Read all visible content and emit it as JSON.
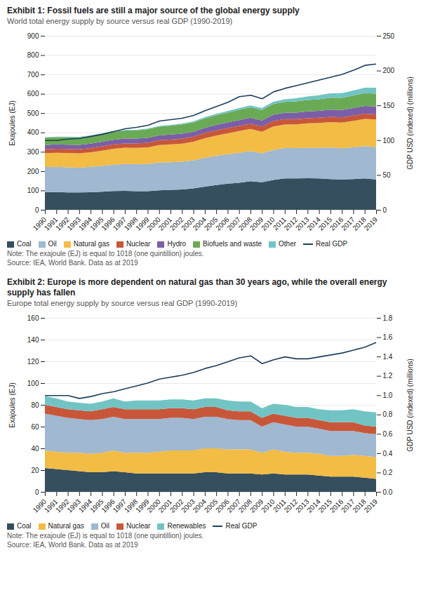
{
  "chart_data": [
    {
      "type": "area",
      "stacked": true,
      "title": "Exhibit 1: Fossil fuels are still a major source of the global energy supply",
      "subtitle": "World total energy supply by source versus real GDP (1990-2019)",
      "x": [
        1990,
        1991,
        1992,
        1993,
        1994,
        1995,
        1996,
        1997,
        1998,
        1999,
        2000,
        2001,
        2002,
        2003,
        2004,
        2005,
        2006,
        2007,
        2008,
        2009,
        2010,
        2011,
        2012,
        2013,
        2014,
        2015,
        2016,
        2017,
        2018,
        2019
      ],
      "xlim": [
        1990,
        2019
      ],
      "xticks": [
        1990,
        1991,
        1992,
        1993,
        1994,
        1995,
        1996,
        1997,
        1998,
        1999,
        2000,
        2001,
        2002,
        2003,
        2004,
        2005,
        2006,
        2007,
        2008,
        2009,
        2010,
        2011,
        2012,
        2013,
        2014,
        2015,
        2016,
        2017,
        2018,
        2019
      ],
      "ylabel": "Exajoules (EJ)",
      "y2label": "GDP USD (indexed) (millions)",
      "ylim": [
        0,
        900
      ],
      "yticks": [
        0,
        100,
        200,
        300,
        400,
        500,
        600,
        700,
        800,
        900
      ],
      "y2lim": [
        0,
        250
      ],
      "y2ticks": [
        0,
        50,
        100,
        150,
        200,
        250
      ],
      "grid": true,
      "legend": "bottom",
      "series": [
        {
          "name": "Coal",
          "color": "#354f5e",
          "values": [
            91,
            92,
            90,
            90,
            91,
            93,
            97,
            98,
            96,
            96,
            101,
            103,
            105,
            111,
            120,
            128,
            135,
            140,
            148,
            142,
            154,
            162,
            162,
            163,
            162,
            159,
            157,
            159,
            162,
            157
          ]
        },
        {
          "name": "Oil",
          "color": "#a0b8d0",
          "values": [
            130,
            130,
            130,
            128,
            131,
            134,
            136,
            139,
            140,
            141,
            144,
            143,
            144,
            145,
            149,
            152,
            153,
            155,
            156,
            150,
            155,
            157,
            157,
            157,
            158,
            163,
            161,
            164,
            167,
            168
          ]
        },
        {
          "name": "Natural gas",
          "color": "#f2bc45",
          "values": [
            72,
            73,
            74,
            74,
            76,
            79,
            83,
            84,
            84,
            86,
            90,
            92,
            93,
            96,
            101,
            104,
            108,
            112,
            114,
            112,
            122,
            122,
            123,
            127,
            129,
            132,
            133,
            137,
            141,
            142
          ]
        },
        {
          "name": "Nuclear",
          "color": "#c8573a",
          "values": [
            20,
            21,
            21,
            21,
            21,
            22,
            22,
            22,
            23,
            24,
            25,
            25,
            26,
            26,
            27,
            27,
            27,
            27,
            27,
            27,
            28,
            28,
            27,
            27,
            27,
            27,
            27,
            27,
            27,
            27
          ]
        },
        {
          "name": "Hydro",
          "color": "#7b5ea7",
          "values": [
            22,
            22,
            22,
            23,
            23,
            24,
            24,
            25,
            25,
            25,
            25,
            26,
            26,
            26,
            27,
            28,
            29,
            30,
            31,
            31,
            33,
            33,
            34,
            35,
            36,
            37,
            38,
            39,
            40,
            40
          ]
        },
        {
          "name": "Biofuels and waste",
          "color": "#6aaa55",
          "values": [
            38,
            38,
            39,
            39,
            40,
            41,
            42,
            42,
            43,
            44,
            45,
            46,
            47,
            48,
            49,
            50,
            51,
            53,
            54,
            54,
            55,
            56,
            58,
            59,
            60,
            62,
            63,
            65,
            66,
            67
          ]
        },
        {
          "name": "Other",
          "color": "#72c4c4",
          "values": [
            2,
            2,
            2,
            2,
            3,
            3,
            3,
            3,
            3,
            4,
            4,
            4,
            5,
            5,
            6,
            7,
            8,
            9,
            10,
            10,
            12,
            14,
            16,
            18,
            20,
            22,
            24,
            26,
            28,
            30
          ]
        },
        {
          "name": "Real GDP",
          "color": "#1c3f5e",
          "type": "line",
          "axis": "y2",
          "values": [
            100,
            100,
            102,
            103,
            106,
            109,
            113,
            117,
            119,
            122,
            128,
            130,
            132,
            136,
            143,
            149,
            155,
            163,
            165,
            160,
            170,
            175,
            179,
            183,
            187,
            191,
            195,
            201,
            208,
            210
          ]
        }
      ],
      "annotations": [
        "Note: The exajoule (EJ) is equal to 1018 (one quintillion) joules.",
        "Source: IEA, World Bank. Data as at 2019"
      ]
    },
    {
      "type": "area",
      "stacked": true,
      "title": "Exhibit 2: Europe is more dependent on natural gas than 30 years ago, while the overall energy supply has fallen",
      "subtitle": "Europe total energy supply by source versus real GDP (1990-2019)",
      "x": [
        1990,
        1991,
        1992,
        1993,
        1994,
        1995,
        1996,
        1997,
        1998,
        1999,
        2000,
        2001,
        2002,
        2003,
        2004,
        2005,
        2006,
        2007,
        2008,
        2009,
        2010,
        2011,
        2012,
        2013,
        2014,
        2015,
        2016,
        2017,
        2018,
        2019
      ],
      "xlim": [
        1990,
        2019
      ],
      "xticks": [
        1990,
        1991,
        1992,
        1993,
        1994,
        1995,
        1996,
        1997,
        1998,
        1999,
        2000,
        2001,
        2002,
        2003,
        2004,
        2005,
        2006,
        2007,
        2008,
        2009,
        2010,
        2011,
        2012,
        2013,
        2014,
        2015,
        2016,
        2017,
        2018,
        2019
      ],
      "ylabel": "Exajoules (EJ)",
      "y2label": "GDP USD (indexed) (millions)",
      "ylim": [
        0,
        160
      ],
      "yticks": [
        0,
        20,
        40,
        60,
        80,
        100,
        120,
        140,
        160
      ],
      "y2lim": [
        0,
        1.8
      ],
      "y2ticks": [
        {
          "value": 0,
          "label": "0.0"
        },
        0.2,
        0.4,
        0.6,
        0.8,
        {
          "value": 1,
          "label": "1.0"
        },
        1.2,
        1.4,
        1.6,
        1.8
      ],
      "grid": true,
      "legend": "bottom",
      "series": [
        {
          "name": "Coal",
          "color": "#354f5e",
          "values": [
            22,
            21,
            20,
            19,
            18,
            18,
            19,
            18,
            17,
            17,
            17,
            17,
            17,
            17,
            18,
            18,
            17,
            17,
            17,
            16,
            17,
            16,
            16,
            16,
            15,
            14,
            14,
            14,
            13,
            12
          ]
        },
        {
          "name": "Natural gas",
          "color": "#f2bc45",
          "values": [
            16,
            16,
            16,
            17,
            17,
            18,
            19,
            18,
            19,
            19,
            20,
            21,
            21,
            21,
            22,
            22,
            22,
            22,
            22,
            20,
            22,
            21,
            20,
            20,
            20,
            19,
            19,
            20,
            20,
            20
          ]
        },
        {
          "name": "Oil",
          "color": "#a0b8d0",
          "values": [
            34,
            33,
            32,
            31,
            31,
            31,
            31,
            31,
            31,
            31,
            30,
            30,
            30,
            29,
            29,
            29,
            28,
            27,
            27,
            24,
            25,
            25,
            24,
            24,
            23,
            23,
            23,
            22,
            21,
            21
          ]
        },
        {
          "name": "Nuclear",
          "color": "#c8573a",
          "values": [
            8,
            8,
            8,
            8,
            8,
            9,
            9,
            9,
            9,
            9,
            9,
            9,
            9,
            9,
            9,
            9,
            8,
            8,
            8,
            8,
            8,
            8,
            8,
            8,
            8,
            8,
            8,
            8,
            7,
            7
          ]
        },
        {
          "name": "Renewables",
          "color": "#72c4c4",
          "values": [
            8,
            8,
            7,
            7,
            7,
            7,
            8,
            7,
            8,
            8,
            8,
            8,
            8,
            8,
            8,
            8,
            9,
            9,
            9,
            9,
            9,
            10,
            10,
            10,
            10,
            11,
            11,
            12,
            13,
            13
          ]
        },
        {
          "name": "Real GDP",
          "color": "#1c3f5e",
          "type": "line",
          "axis": "y2",
          "values": [
            1.0,
            1.0,
            1.0,
            0.97,
            0.99,
            1.02,
            1.04,
            1.07,
            1.1,
            1.13,
            1.17,
            1.19,
            1.21,
            1.24,
            1.28,
            1.31,
            1.35,
            1.39,
            1.41,
            1.33,
            1.37,
            1.4,
            1.38,
            1.38,
            1.4,
            1.42,
            1.44,
            1.47,
            1.5,
            1.55
          ]
        }
      ],
      "annotations": [
        "Note: The exajoule (EJ) is equal to 1018 (one quintillion) joules.",
        "Source: IEA, World Bank. Data as at 2019"
      ]
    }
  ]
}
